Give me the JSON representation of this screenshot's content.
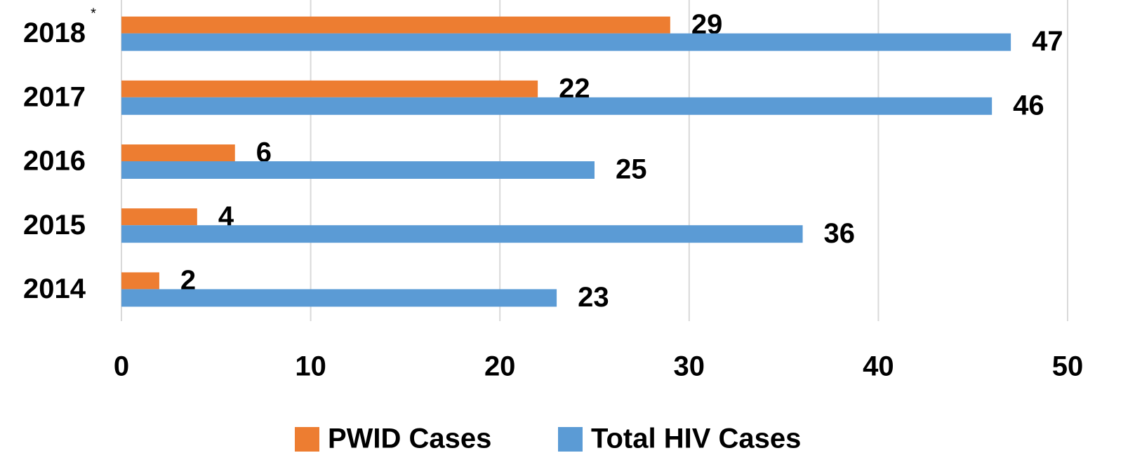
{
  "chart_data": {
    "type": "hbar",
    "categories": [
      "2018",
      "2017",
      "2016",
      "2015",
      "2014"
    ],
    "annotation": "*",
    "series": [
      {
        "name": "PWID Cases",
        "color": "#ed7d31",
        "values": [
          29,
          22,
          6,
          4,
          2
        ]
      },
      {
        "name": "Total HIV Cases",
        "color": "#5b9bd5",
        "values": [
          47,
          46,
          25,
          36,
          23
        ]
      }
    ],
    "xlim": [
      0,
      50
    ],
    "xticks": [
      0,
      10,
      20,
      30,
      40,
      50
    ],
    "grid": true,
    "legend": "bottom"
  }
}
